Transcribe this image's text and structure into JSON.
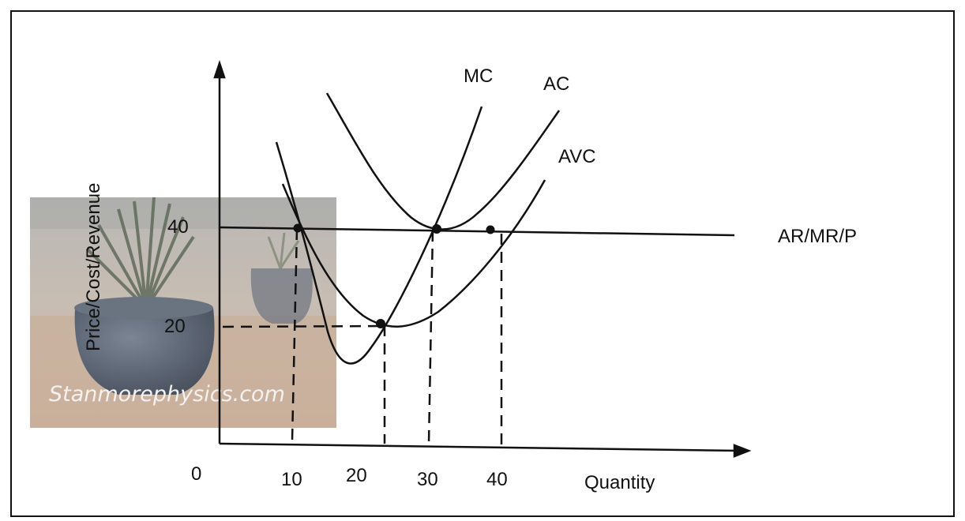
{
  "diagram": {
    "y_axis_label": "Price/Cost/Revenue",
    "x_axis_label": "Quantity",
    "origin_label": "0",
    "y_ticks": [
      "40",
      "20"
    ],
    "x_ticks": [
      "10",
      "20",
      "30",
      "40"
    ],
    "curves": {
      "mc": "MC",
      "ac": "AC",
      "avc": "AVC",
      "price_line": "AR/MR/P"
    },
    "watermark": "Stanmorephysics.com"
  },
  "colors": {
    "ink": "#111111",
    "photo_bg": "#c9c2ba",
    "pot": "#5b6472"
  }
}
